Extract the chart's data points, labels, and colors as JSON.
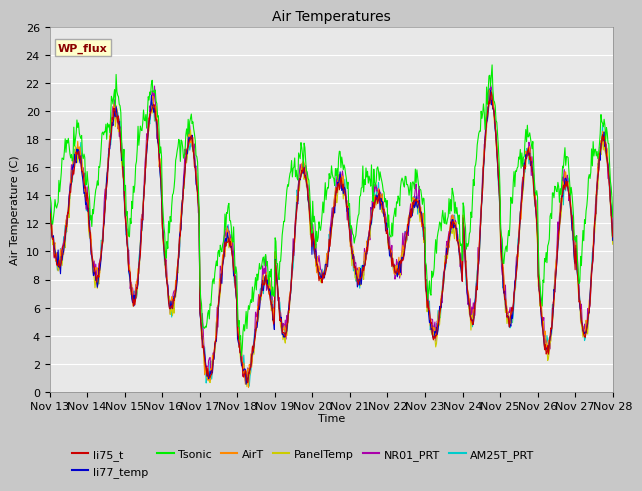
{
  "title": "Air Temperatures",
  "ylabel": "Air Temperature (C)",
  "xlabel": "Time",
  "site_label": "WP_flux",
  "ylim": [
    0,
    26
  ],
  "series_colors": {
    "li75_t": "#cc0000",
    "li77_temp": "#0000cc",
    "Tsonic": "#00ee00",
    "AirT": "#ff8800",
    "PanelTemp": "#cccc00",
    "NR01_PRT": "#aa00aa",
    "AM25T_PRT": "#00cccc"
  },
  "tick_labels": [
    "Nov 13",
    "Nov 14",
    "Nov 15",
    "Nov 16",
    "Nov 17",
    "Nov 18",
    "Nov 19",
    "Nov 20",
    "Nov 21",
    "Nov 22",
    "Nov 23",
    "Nov 24",
    "Nov 25",
    "Nov 26",
    "Nov 27",
    "Nov 28"
  ],
  "yticks": [
    0,
    2,
    4,
    6,
    8,
    10,
    12,
    14,
    16,
    18,
    20,
    22,
    24,
    26
  ],
  "fig_bg": "#c8c8c8",
  "plot_bg": "#e8e8e8"
}
